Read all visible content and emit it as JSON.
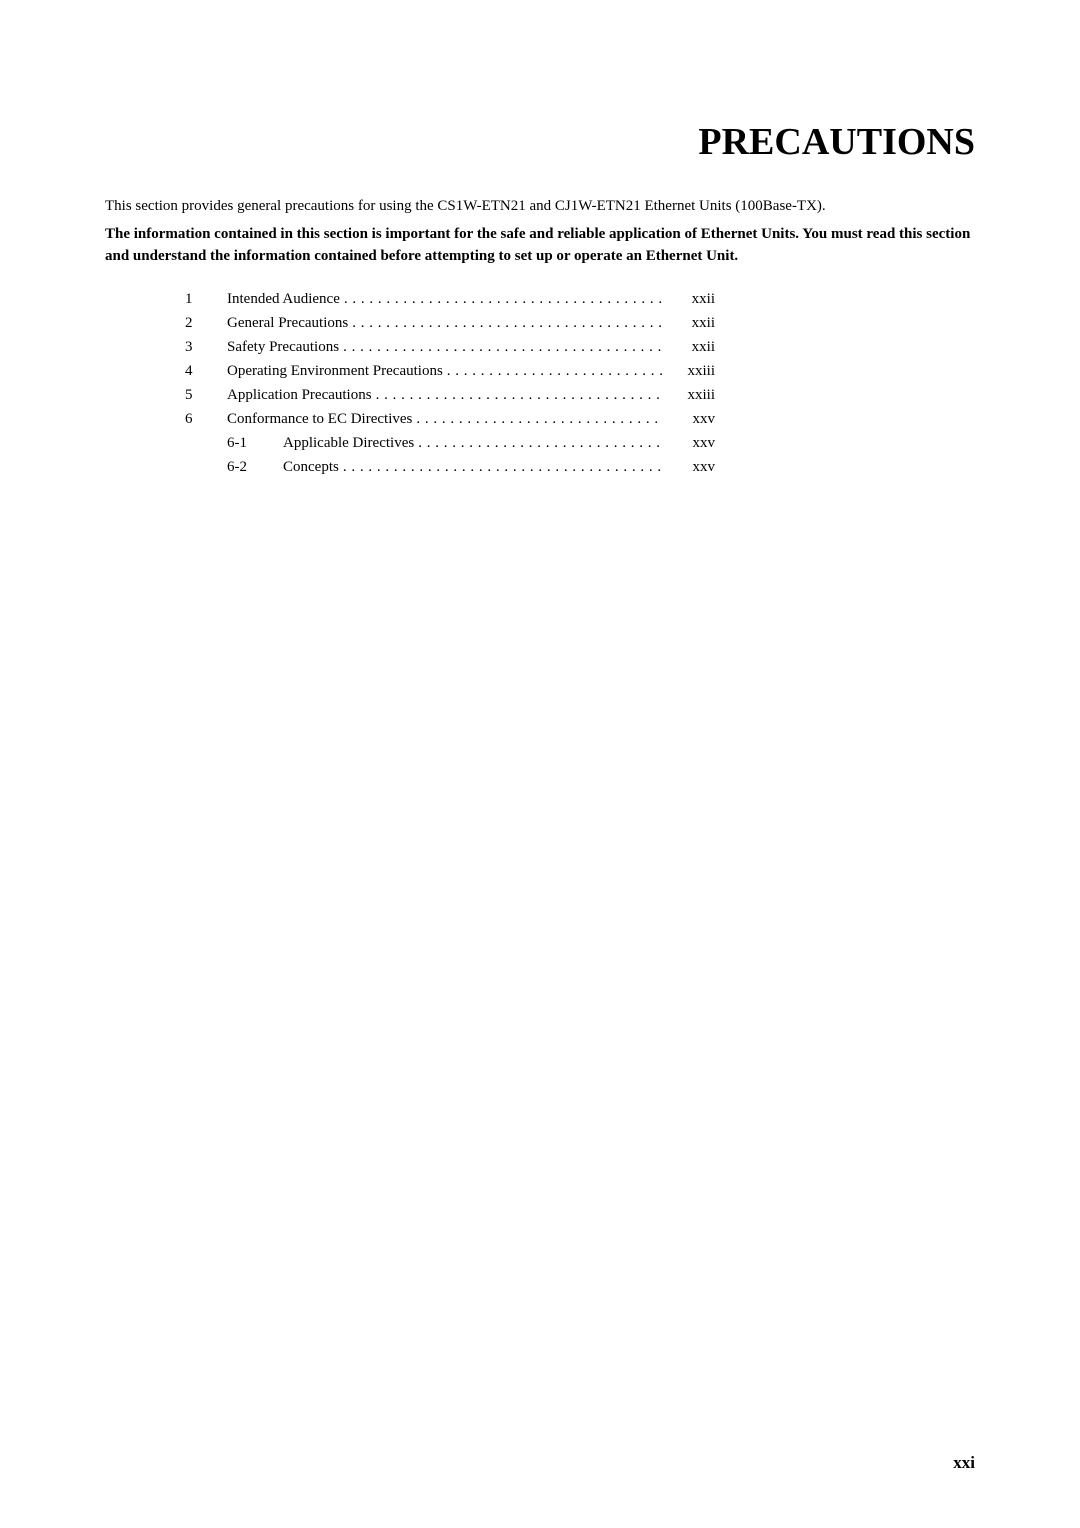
{
  "title": "PRECAUTIONS",
  "intro": "This section provides general precautions for using the CS1W-ETN21 and CJ1W-ETN21 Ethernet Units (100Base-TX).",
  "boldNote": "The information contained in this section is important for the safe and reliable application of Ethernet Units. You must read this section and understand the information contained before attempting to set up or operate an Ethernet Unit.",
  "toc": [
    {
      "num": "1",
      "label": "Intended Audience",
      "page": "xxii"
    },
    {
      "num": "2",
      "label": "General Precautions",
      "page": "xxii"
    },
    {
      "num": "3",
      "label": "Safety Precautions",
      "page": "xxii"
    },
    {
      "num": "4",
      "label": "Operating Environment Precautions",
      "page": "xxiii"
    },
    {
      "num": "5",
      "label": "Application Precautions",
      "page": "xxiii"
    },
    {
      "num": "6",
      "label": "Conformance to EC Directives",
      "page": "xxv"
    }
  ],
  "tocSub": [
    {
      "num": "6-1",
      "label": "Applicable Directives",
      "page": "xxv"
    },
    {
      "num": "6-2",
      "label": "Concepts",
      "page": "xxv"
    }
  ],
  "pageNumber": "xxi",
  "styling": {
    "background_color": "#ffffff",
    "text_color": "#000000",
    "title_fontsize": 38,
    "body_fontsize": 15,
    "pagenum_fontsize": 17,
    "font_family": "Times New Roman"
  }
}
